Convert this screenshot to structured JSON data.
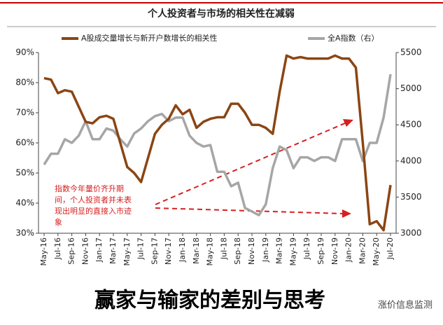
{
  "chart_data": {
    "type": "line",
    "title": "个人投资者与市场的相关性在减弱",
    "categories": [
      "May-16",
      null,
      "Jul-16",
      null,
      "Sep-16",
      null,
      "Nov-16",
      null,
      "Jan-17",
      null,
      "Mar-17",
      null,
      "May-17",
      null,
      "Jul-17",
      null,
      "Sep-17",
      null,
      "Nov-17",
      null,
      "Jan-18",
      null,
      "Mar-18",
      null,
      "May-18",
      null,
      "Jul-18",
      null,
      "Sep-18",
      null,
      "Nov-18",
      null,
      "Jan-19",
      null,
      "Mar-19",
      null,
      "May-19",
      null,
      "Jul-19",
      null,
      "Sep-19",
      null,
      "Nov-19",
      null,
      "Jan-20",
      null,
      "Mar-20",
      null,
      "May-20",
      null,
      "Jul-20"
    ],
    "series": [
      {
        "name": "A股成交量增长与新开户数增长的相关性",
        "color": "#8b4513",
        "values": [
          81.5,
          81,
          76.5,
          77.5,
          77,
          72,
          67,
          66.5,
          68.5,
          69,
          68,
          60,
          52,
          50,
          47,
          55,
          63,
          66,
          68,
          72.5,
          69.5,
          71,
          65,
          67,
          68,
          68.5,
          68.5,
          73,
          73,
          70,
          66,
          66,
          65,
          63,
          77,
          89,
          88,
          88.5,
          88,
          88,
          88,
          88,
          89,
          88,
          88,
          85,
          60,
          33,
          34,
          31,
          46
        ]
      },
      {
        "name": "全A指数（右）",
        "color": "#a6a6a6",
        "axis": "y2",
        "values": [
          3950,
          4100,
          4100,
          4300,
          4250,
          4350,
          4550,
          4300,
          4300,
          4450,
          4420,
          4300,
          4200,
          4380,
          4450,
          4550,
          4620,
          4650,
          4550,
          4600,
          4600,
          4350,
          4250,
          4200,
          4220,
          3850,
          3850,
          3650,
          3700,
          3350,
          3300,
          3250,
          3400,
          3900,
          4200,
          4150,
          3900,
          4050,
          4050,
          4000,
          4050,
          4050,
          4000,
          4300,
          4300,
          4300,
          4000,
          4250,
          4250,
          4600,
          5200
        ]
      }
    ],
    "ylim": [
      30,
      90
    ],
    "yticks": [
      {
        "value": 30,
        "label": "30%"
      },
      {
        "value": 40,
        "label": "40%"
      },
      {
        "value": 50,
        "label": "50%"
      },
      {
        "value": 60,
        "label": "60%"
      },
      {
        "value": 70,
        "label": "70%"
      },
      {
        "value": 80,
        "label": "80%"
      },
      {
        "value": 90,
        "label": "90%"
      }
    ],
    "y2lim": [
      3000,
      5500
    ],
    "y2ticks": [
      3000,
      3500,
      4000,
      4500,
      5000,
      5500
    ],
    "annotation": [
      "指数今年量价齐升期",
      "间，个人投资者并未表",
      "现出明显的直接入市迹",
      "象"
    ]
  },
  "caption": "赢家与输家的差别与思考",
  "watermark": "涨价信息监测"
}
